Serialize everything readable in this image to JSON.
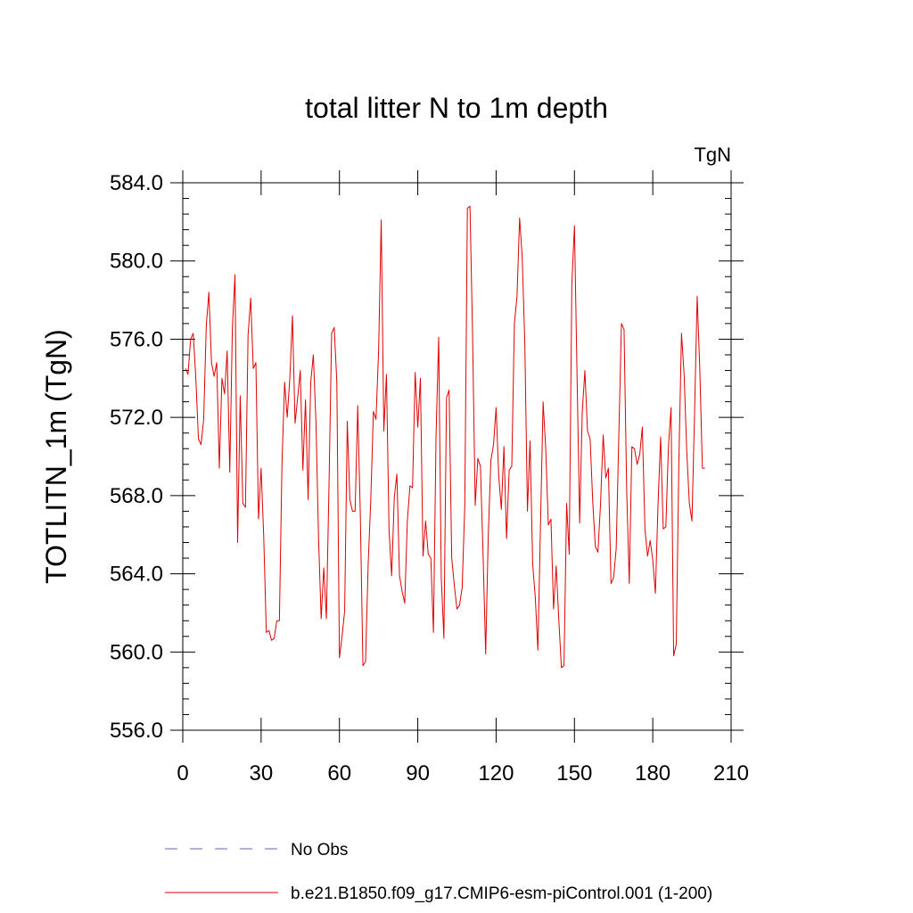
{
  "chart_data": {
    "type": "line",
    "title": "total litter N to 1m depth",
    "units": "TgN",
    "xlabel": "",
    "ylabel": "TOTLITN_1m  (TgN)",
    "xlim": [
      0,
      210
    ],
    "ylim": [
      556.0,
      584.0
    ],
    "x_ticks": [
      0,
      30,
      60,
      90,
      120,
      150,
      180,
      210
    ],
    "x_tick_labels": [
      "0",
      "30",
      "60",
      "90",
      "120",
      "150",
      "180",
      "210"
    ],
    "y_ticks": [
      556.0,
      560.0,
      564.0,
      568.0,
      572.0,
      576.0,
      580.0,
      584.0
    ],
    "y_tick_labels": [
      "556.0",
      "560.0",
      "564.0",
      "568.0",
      "572.0",
      "576.0",
      "580.0",
      "584.0"
    ],
    "grid": false,
    "legend_position": "bottom",
    "series": [
      {
        "name": "No Obs",
        "color": "#6f63b5",
        "style": "dashed",
        "x": [],
        "values": []
      },
      {
        "name": "b.e21.B1850.f09_g17.CMIP6-esm-piControl.001 (1-200)",
        "color": "#e00000",
        "style": "solid",
        "x_start": 1,
        "x_step": 1,
        "values": [
          574.5,
          574.2,
          576.0,
          576.3,
          574.0,
          570.9,
          570.6,
          571.9,
          576.7,
          578.4,
          574.8,
          574.1,
          574.8,
          569.4,
          574.0,
          573.2,
          575.4,
          569.2,
          576.6,
          579.3,
          565.6,
          573.1,
          567.6,
          567.4,
          576.2,
          578.1,
          574.5,
          574.8,
          566.8,
          569.4,
          565.9,
          561.0,
          561.1,
          560.6,
          560.7,
          561.6,
          561.6,
          569.7,
          573.8,
          572.0,
          574.0,
          577.2,
          571.7,
          573.0,
          574.4,
          569.3,
          572.9,
          567.8,
          573.8,
          575.2,
          571.8,
          565.8,
          561.7,
          564.3,
          561.7,
          568.5,
          576.3,
          576.6,
          573.8,
          559.7,
          560.8,
          562.1,
          571.8,
          567.8,
          567.2,
          567.2,
          572.6,
          567.0,
          559.3,
          559.5,
          564.5,
          567.8,
          572.3,
          571.9,
          575.4,
          582.1,
          571.3,
          574.2,
          566.2,
          563.9,
          567.9,
          569.1,
          563.9,
          563.1,
          562.5,
          566.7,
          568.5,
          568.4,
          574.3,
          571.5,
          574.0,
          564.9,
          566.7,
          565.0,
          564.8,
          561.0,
          571.1,
          576.1,
          563.8,
          560.7,
          573.0,
          573.4,
          564.8,
          563.4,
          562.2,
          562.4,
          563.3,
          567.5,
          582.7,
          582.8,
          576.1,
          567.5,
          569.9,
          569.5,
          565.0,
          559.9,
          566.0,
          569.8,
          570.6,
          572.5,
          569.0,
          567.3,
          570.5,
          565.8,
          569.3,
          569.5,
          576.8,
          578.2,
          582.2,
          580.2,
          575.8,
          567.2,
          570.8,
          564.5,
          562.8,
          560.1,
          566.5,
          572.8,
          570.4,
          566.5,
          566.8,
          562.2,
          564.4,
          561.7,
          559.2,
          559.3,
          567.6,
          565.0,
          578.8,
          581.8,
          574.1,
          566.6,
          572.3,
          574.4,
          571.3,
          570.9,
          567.7,
          565.4,
          565.1,
          567.6,
          571.1,
          568.9,
          569.4,
          563.5,
          563.8,
          565.3,
          571.1,
          576.8,
          576.5,
          568.3,
          563.5,
          570.5,
          570.4,
          569.6,
          570.1,
          571.5,
          566.3,
          564.9,
          565.7,
          564.7,
          563.0,
          567.5,
          571.0,
          566.3,
          566.4,
          570.5,
          572.5,
          559.8,
          560.4,
          569.8,
          576.3,
          574.2,
          570.3,
          567.6,
          566.7,
          572.2,
          578.2,
          574.5,
          569.4,
          569.4
        ]
      }
    ]
  }
}
